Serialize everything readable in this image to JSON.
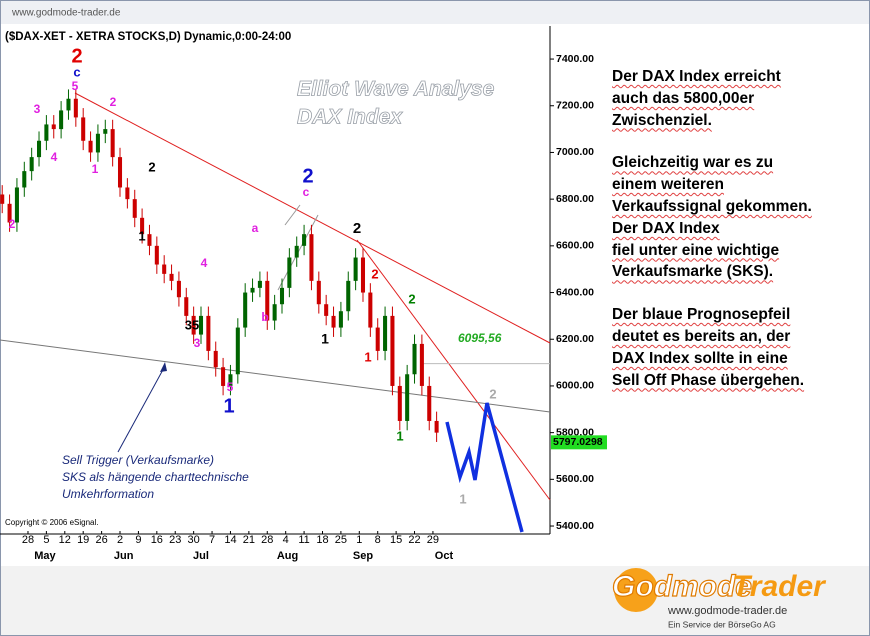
{
  "header": {
    "url": "www.godmode-trader.de"
  },
  "chart_data": {
    "type": "candlestick",
    "title": "($DAX-XET - XETRA STOCKS,D) Dynamic,0:00-24:00",
    "up_color": "#006400",
    "down_color": "#cc0000",
    "x": [
      -7,
      -5,
      -3,
      -1,
      1,
      3,
      5,
      7,
      9,
      11,
      13,
      15,
      17,
      19,
      21,
      23,
      25,
      27,
      29,
      31,
      33,
      35,
      37,
      39,
      41,
      43,
      45,
      47,
      49,
      51,
      53,
      55,
      57,
      59,
      61,
      63,
      65,
      67,
      69,
      71,
      73,
      75,
      77,
      79,
      81,
      83,
      85,
      87,
      89,
      91,
      93,
      95,
      97,
      99,
      101,
      103,
      105,
      107,
      109,
      111
    ],
    "open": [
      6820,
      6780,
      6700,
      6850,
      6920,
      6980,
      7050,
      7120,
      7100,
      7180,
      7230,
      7150,
      7050,
      7000,
      7080,
      7100,
      6980,
      6850,
      6800,
      6720,
      6650,
      6600,
      6520,
      6480,
      6450,
      6380,
      6300,
      6220,
      6300,
      6150,
      6080,
      6000,
      6050,
      6250,
      6400,
      6420,
      6450,
      6280,
      6350,
      6420,
      6550,
      6600,
      6650,
      6450,
      6350,
      6300,
      6250,
      6320,
      6450,
      6550,
      6400,
      6250,
      6150,
      6300,
      6000,
      5850,
      6050,
      6180,
      6000,
      5850
    ],
    "high": [
      6860,
      6820,
      6890,
      6960,
      7020,
      7090,
      7160,
      7160,
      7220,
      7270,
      7270,
      7190,
      7090,
      7120,
      7140,
      7140,
      7020,
      6890,
      6840,
      6760,
      6690,
      6640,
      6560,
      6520,
      6490,
      6420,
      6340,
      6340,
      6340,
      6190,
      6120,
      6090,
      6290,
      6440,
      6460,
      6490,
      6490,
      6390,
      6460,
      6590,
      6640,
      6690,
      6690,
      6490,
      6390,
      6340,
      6360,
      6490,
      6590,
      6590,
      6440,
      6290,
      6340,
      6340,
      6040,
      6090,
      6220,
      6220,
      6040,
      5890
    ],
    "low": [
      6740,
      6660,
      6660,
      6810,
      6880,
      6940,
      7010,
      7060,
      7060,
      7140,
      7110,
      7010,
      6960,
      6960,
      7040,
      6940,
      6810,
      6760,
      6680,
      6610,
      6560,
      6480,
      6440,
      6410,
      6340,
      6260,
      6180,
      6180,
      6110,
      6040,
      5960,
      5960,
      6010,
      6210,
      6360,
      6380,
      6240,
      6240,
      6310,
      6380,
      6510,
      6560,
      6410,
      6310,
      6260,
      6210,
      6210,
      6280,
      6410,
      6360,
      6210,
      6110,
      6110,
      5960,
      5810,
      5810,
      6010,
      5960,
      5810,
      5760
    ],
    "close": [
      6780,
      6700,
      6850,
      6920,
      6980,
      7050,
      7120,
      7100,
      7180,
      7230,
      7150,
      7050,
      7000,
      7080,
      7100,
      6980,
      6850,
      6800,
      6720,
      6650,
      6600,
      6520,
      6480,
      6450,
      6380,
      6300,
      6220,
      6300,
      6150,
      6080,
      6000,
      6050,
      6250,
      6400,
      6420,
      6450,
      6280,
      6350,
      6420,
      6550,
      6600,
      6650,
      6450,
      6350,
      6300,
      6250,
      6320,
      6450,
      6550,
      6400,
      6250,
      6150,
      6300,
      6000,
      5850,
      6050,
      6180,
      6000,
      5850,
      5800
    ],
    "xlim": [
      -7.6,
      141.8
    ],
    "xticks": [
      {
        "value": 0,
        "label": "28"
      },
      {
        "value": 5,
        "label": "5"
      },
      {
        "value": 10,
        "label": "12"
      },
      {
        "value": 15,
        "label": "19"
      },
      {
        "value": 20,
        "label": "26"
      },
      {
        "value": 25,
        "label": "2"
      },
      {
        "value": 30,
        "label": "9"
      },
      {
        "value": 35,
        "label": "16"
      },
      {
        "value": 40,
        "label": "23"
      },
      {
        "value": 45,
        "label": "30"
      },
      {
        "value": 50,
        "label": "7"
      },
      {
        "value": 55,
        "label": "14"
      },
      {
        "value": 60,
        "label": "21"
      },
      {
        "value": 65,
        "label": "28"
      },
      {
        "value": 70,
        "label": "4"
      },
      {
        "value": 75,
        "label": "11"
      },
      {
        "value": 80,
        "label": "18"
      },
      {
        "value": 85,
        "label": "25"
      },
      {
        "value": 90,
        "label": "1"
      },
      {
        "value": 95,
        "label": "8"
      },
      {
        "value": 100,
        "label": "15"
      },
      {
        "value": 105,
        "label": "22"
      },
      {
        "value": 110,
        "label": "29"
      }
    ],
    "month_ticks": [
      {
        "value": 4.6,
        "label": "May"
      },
      {
        "value": 26,
        "label": "Jun"
      },
      {
        "value": 47,
        "label": "Jul"
      },
      {
        "value": 70.5,
        "label": "Aug"
      },
      {
        "value": 91,
        "label": "Sep"
      },
      {
        "value": 113,
        "label": "Oct"
      }
    ],
    "ylim": [
      5383,
      7533
    ],
    "yticks": [
      {
        "value": 5400,
        "label": "5400.00"
      },
      {
        "value": 5600,
        "label": "5600.00"
      },
      {
        "value": 5800,
        "label": "5800.00"
      },
      {
        "value": 6000,
        "label": "6000.00"
      },
      {
        "value": 6200,
        "label": "6200.00"
      },
      {
        "value": 6400,
        "label": "6400.00"
      },
      {
        "value": 6600,
        "label": "6600.00"
      },
      {
        "value": 6800,
        "label": "6800.00"
      },
      {
        "value": 7000,
        "label": "7000.00"
      },
      {
        "value": 7200,
        "label": "7200.00"
      },
      {
        "value": 7400,
        "label": "7400.00"
      }
    ],
    "level": {
      "value": 6095.56,
      "label": "6095,56",
      "color": "#22aa22"
    },
    "last_price": {
      "value": 5797.0298,
      "color": "#22dd22"
    },
    "grid": false
  },
  "wave_labels": [
    {
      "text": "2",
      "color": "#e00000"
    },
    {
      "text": "c",
      "color": "#1010cc"
    },
    {
      "text": "5",
      "color": "#e020e0"
    },
    {
      "text": "3",
      "color": "#e020e0"
    },
    {
      "text": "4",
      "color": "#e020e0"
    },
    {
      "text": "2",
      "color": "#e020e0"
    },
    {
      "text": "1",
      "color": "#e020e0"
    },
    {
      "text": "2",
      "color": "#e020e0"
    },
    {
      "text": "2",
      "color": "#000000"
    },
    {
      "text": "1",
      "color": "#000000"
    },
    {
      "text": "35",
      "color": "#000000"
    },
    {
      "text": "4",
      "color": "#e020e0"
    },
    {
      "text": "3",
      "color": "#e020e0"
    },
    {
      "text": "a",
      "color": "#e020e0"
    },
    {
      "text": "b",
      "color": "#e020e0"
    },
    {
      "text": "2",
      "color": "#1010cc"
    },
    {
      "text": "c",
      "color": "#e020e0"
    },
    {
      "text": "5",
      "color": "#e020e0"
    },
    {
      "text": "1",
      "color": "#1010cc"
    },
    {
      "text": "1",
      "color": "#000000"
    },
    {
      "text": "2",
      "color": "#000000"
    },
    {
      "text": "2",
      "color": "#e00000"
    },
    {
      "text": "1",
      "color": "#e00000"
    },
    {
      "text": "2",
      "color": "#008000"
    },
    {
      "text": "1",
      "color": "#008000"
    },
    {
      "text": "2",
      "color": "#aaaaaa"
    },
    {
      "text": "1",
      "color": "#aaaaaa"
    }
  ],
  "annotations": {
    "overlay_title": [
      "Elliot Wave Analyse",
      "DAX Index"
    ],
    "sell_trigger": [
      "Sell Trigger (Verkaufsmarke)",
      "SKS als hängende charttechnische",
      "Umkehrformation"
    ],
    "copyright": "Copyright © 2006 eSignal."
  },
  "commentary": [
    [
      "Der DAX Index erreicht",
      "auch das 5800,00er",
      "Zwischenziel."
    ],
    [
      "Gleichzeitig war es zu",
      "einem weiteren",
      "Verkaufssignal gekommen.",
      "Der DAX Index",
      "fiel unter eine wichtige",
      "Verkaufsmarke (SKS)."
    ],
    [
      "Der blaue Prognosepfeil",
      "deutet es bereits an, der",
      "DAX Index sollte in eine",
      "Sell Off Phase übergehen."
    ]
  ],
  "logo": {
    "name_part1": "Godmode",
    "name_part2": "Trader",
    "url": "www.godmode-trader.de",
    "tagline": "Ein Service der BörseGo AG"
  }
}
